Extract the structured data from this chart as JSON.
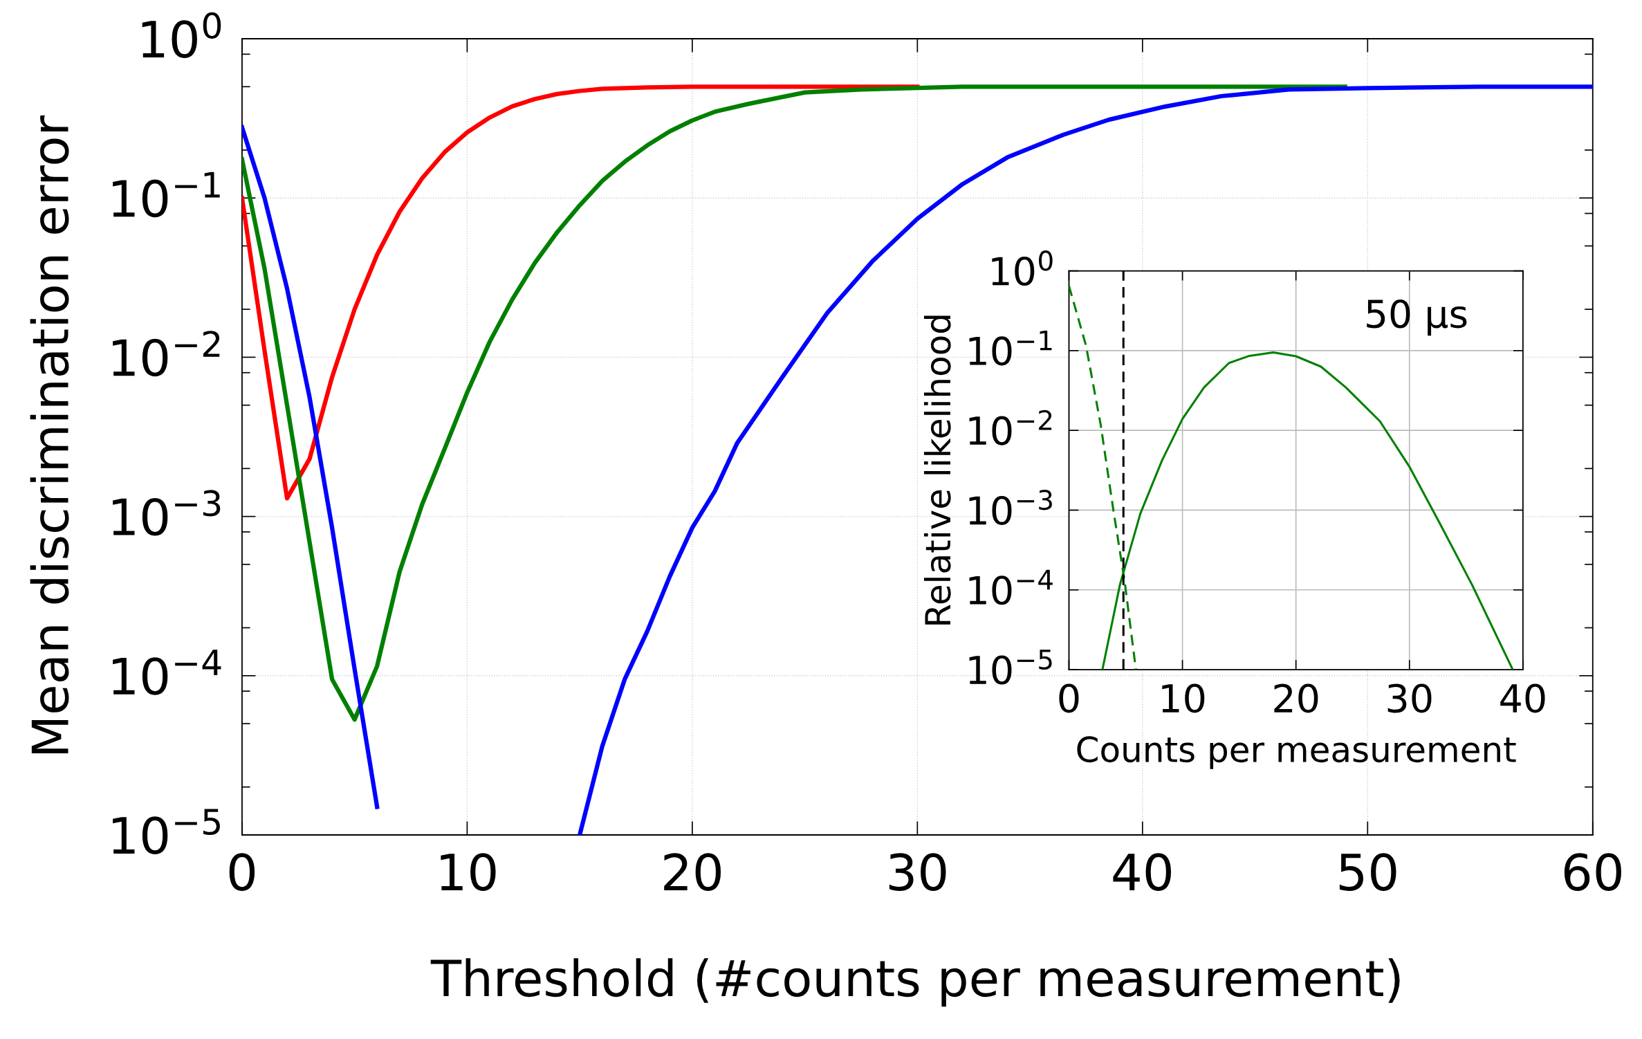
{
  "chart_data": [
    {
      "type": "line",
      "xlabel": "Threshold (#counts per measurement)",
      "ylabel": "Mean discrimination error",
      "log": "y",
      "grid": true,
      "xlim": [
        0,
        60
      ],
      "xticks": [
        0,
        10,
        20,
        30,
        40,
        50,
        60
      ],
      "ylim": [
        1e-05,
        1
      ],
      "yticks": [
        {
          "value": 1e-05,
          "label": "10$^{−5}$"
        },
        {
          "value": 0.0001,
          "label": "10$^{−4}$"
        },
        {
          "value": 0.001,
          "label": "10$^{−3}$"
        },
        {
          "value": 0.01,
          "label": "10$^{−2}$"
        },
        {
          "value": 0.1,
          "label": "10$^{−1}$"
        },
        {
          "value": 1,
          "label": "10$^{0}$"
        }
      ],
      "line_style": "solid",
      "marker": "none",
      "series": [
        {
          "color": "#ff0000",
          "x": [
            0,
            1,
            2,
            3,
            4,
            5,
            6,
            7,
            8,
            9,
            10,
            11,
            12,
            13,
            14,
            15,
            16,
            17,
            18,
            20,
            25,
            30
          ],
          "values": [
            0.1,
            0.011,
            0.0013,
            0.0023,
            0.0075,
            0.02,
            0.044,
            0.082,
            0.133,
            0.194,
            0.258,
            0.32,
            0.376,
            0.418,
            0.45,
            0.47,
            0.485,
            0.49,
            0.495,
            0.5,
            0.5,
            0.5
          ]
        },
        {
          "color": "#008000",
          "x": [
            0,
            1,
            2,
            3,
            4,
            5,
            6,
            7,
            8,
            9,
            10,
            11,
            12,
            13,
            14,
            15,
            16,
            17,
            18,
            19,
            20,
            21,
            22.5,
            25,
            27.5,
            32,
            40,
            49
          ],
          "values": [
            0.175,
            0.036,
            0.005,
            0.00069,
            9.5e-05,
            5.3e-05,
            0.000115,
            0.00045,
            0.00119,
            0.00266,
            0.006,
            0.0125,
            0.023,
            0.039,
            0.061,
            0.09,
            0.128,
            0.169,
            0.214,
            0.262,
            0.307,
            0.348,
            0.39,
            0.46,
            0.48,
            0.5,
            0.5,
            0.5
          ]
        },
        {
          "color": "#0000ff",
          "x": [
            0,
            1,
            2,
            3,
            4,
            5,
            6,
            10,
            15,
            16,
            17,
            18,
            19,
            20,
            21,
            22,
            24,
            26,
            28,
            30,
            32,
            34,
            36.5,
            38.5,
            41,
            43.5,
            46.5,
            50,
            55,
            60
          ],
          "values": [
            0.278,
            0.1,
            0.027,
            0.0056,
            0.00085,
            0.00011,
            1.5e-05,
            null,
            1e-05,
            3.6e-05,
            9.5e-05,
            0.00019,
            0.00042,
            0.00085,
            0.00144,
            0.0029,
            0.0075,
            0.019,
            0.04,
            0.074,
            0.122,
            0.18,
            0.25,
            0.31,
            0.375,
            0.436,
            0.48,
            0.49,
            0.5,
            0.5
          ]
        }
      ]
    },
    {
      "type": "line",
      "xlabel": "Counts per measurement",
      "ylabel": "Relative likelihood",
      "log": "y",
      "grid": true,
      "xlim": [
        0,
        40
      ],
      "xticks": [
        0,
        10,
        20,
        30,
        40
      ],
      "ylim": [
        1e-05,
        1
      ],
      "yticks": [
        {
          "value": 1e-05,
          "label": "10$^{−5}$"
        },
        {
          "value": 0.0001,
          "label": "10$^{−4}$"
        },
        {
          "value": 0.001,
          "label": "10$^{−3}$"
        },
        {
          "value": 0.01,
          "label": "10$^{−2}$"
        },
        {
          "value": 0.1,
          "label": "10$^{−1}$"
        },
        {
          "value": 1,
          "label": "10$^{0}$"
        }
      ],
      "marker": "none",
      "annotations": [
        "50 µs"
      ],
      "ref_lines": [
        {
          "axis": "x",
          "value": 4.8,
          "color": "#000000",
          "line_style": "dashed"
        }
      ],
      "series": [
        {
          "color": "#008000",
          "line_style": "dashed",
          "x": [
            0,
            1.5,
            2.8,
            3.9,
            4.9,
            5.9
          ],
          "values": [
            0.65,
            0.116,
            0.0117,
            0.00103,
            0.00013,
            1e-05
          ]
        },
        {
          "color": "#008000",
          "line_style": "solid",
          "x": [
            2.95,
            4.5,
            6.3,
            8.2,
            10,
            11.9,
            14.1,
            15.9,
            18,
            20,
            22.2,
            24.4,
            27.4,
            30,
            32.5,
            35.5,
            39.1
          ],
          "values": [
            1e-05,
            0.000117,
            0.00091,
            0.0042,
            0.0139,
            0.0345,
            0.07,
            0.086,
            0.095,
            0.085,
            0.063,
            0.0345,
            0.013,
            0.0035,
            0.00076,
            0.000117,
            1e-05
          ]
        }
      ]
    }
  ]
}
